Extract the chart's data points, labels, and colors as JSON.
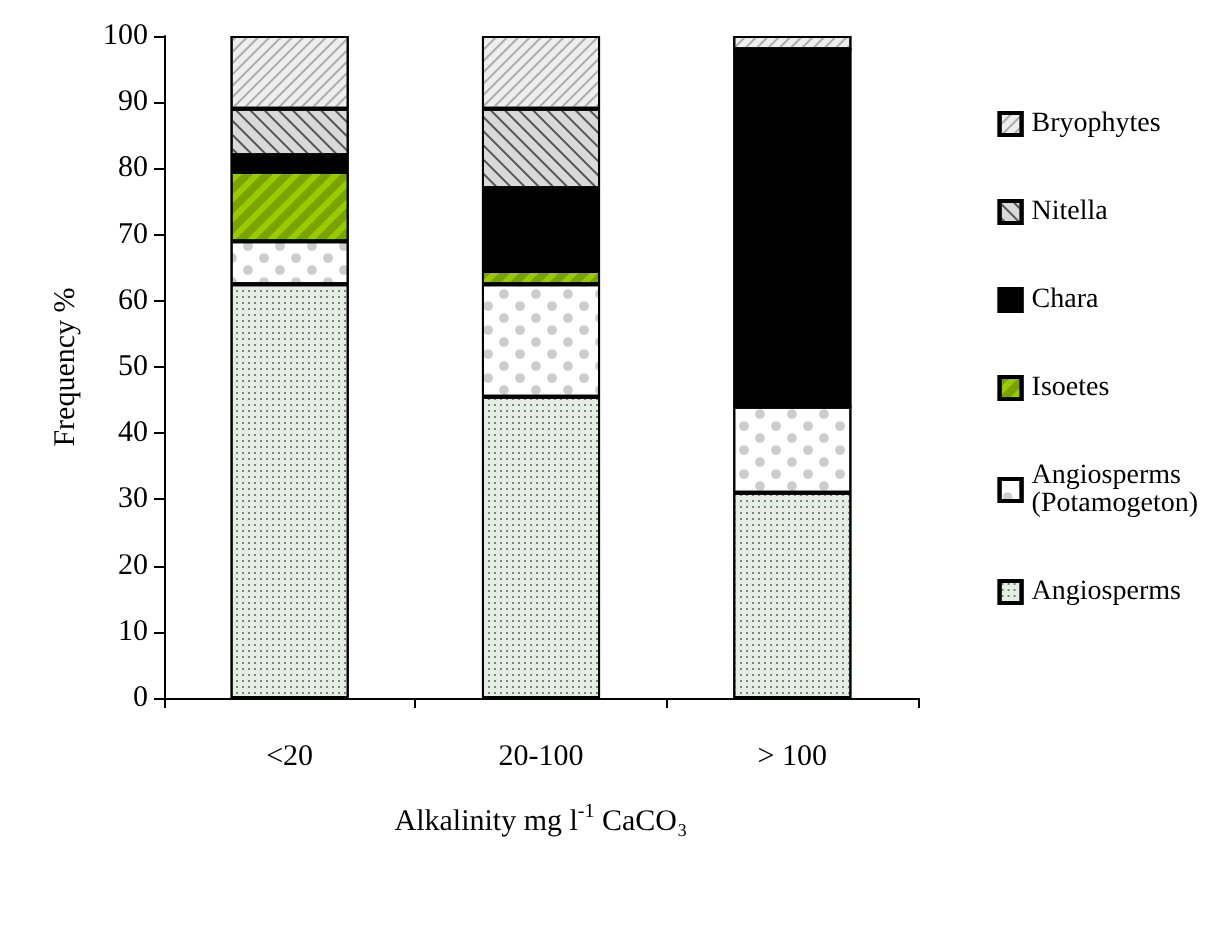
{
  "chart_data": {
    "type": "bar",
    "stacked": true,
    "xlabel": "Alkalinity mg l$^{-1}$ CaCO₃",
    "ylabel": "Frequency %",
    "categories": [
      "<20",
      "20-100",
      "> 100"
    ],
    "series": [
      {
        "name": "Angiosperms",
        "color": "#e6ede6",
        "values": [
          62.5,
          45.5,
          31
        ]
      },
      {
        "name": "Angiosperms\n(Potamogeton)",
        "color": "#ffffff",
        "values": [
          6.5,
          17,
          13
        ]
      },
      {
        "name": "Isoetes",
        "color": "#99cc00",
        "values": [
          10.5,
          2,
          0
        ]
      },
      {
        "name": "Chara",
        "color": "#000000",
        "values": [
          2.5,
          12.5,
          54
        ]
      },
      {
        "name": "Nitella",
        "color": "#d9d9d9",
        "values": [
          7,
          12,
          0
        ]
      },
      {
        "name": "Bryophytes",
        "color": "#eeeeee",
        "values": [
          11,
          11,
          2
        ]
      }
    ],
    "ylim": [
      0,
      100
    ],
    "yticks": [
      0,
      10,
      20,
      30,
      40,
      50,
      60,
      70,
      80,
      90,
      100
    ],
    "grid": false,
    "legend": "right"
  }
}
